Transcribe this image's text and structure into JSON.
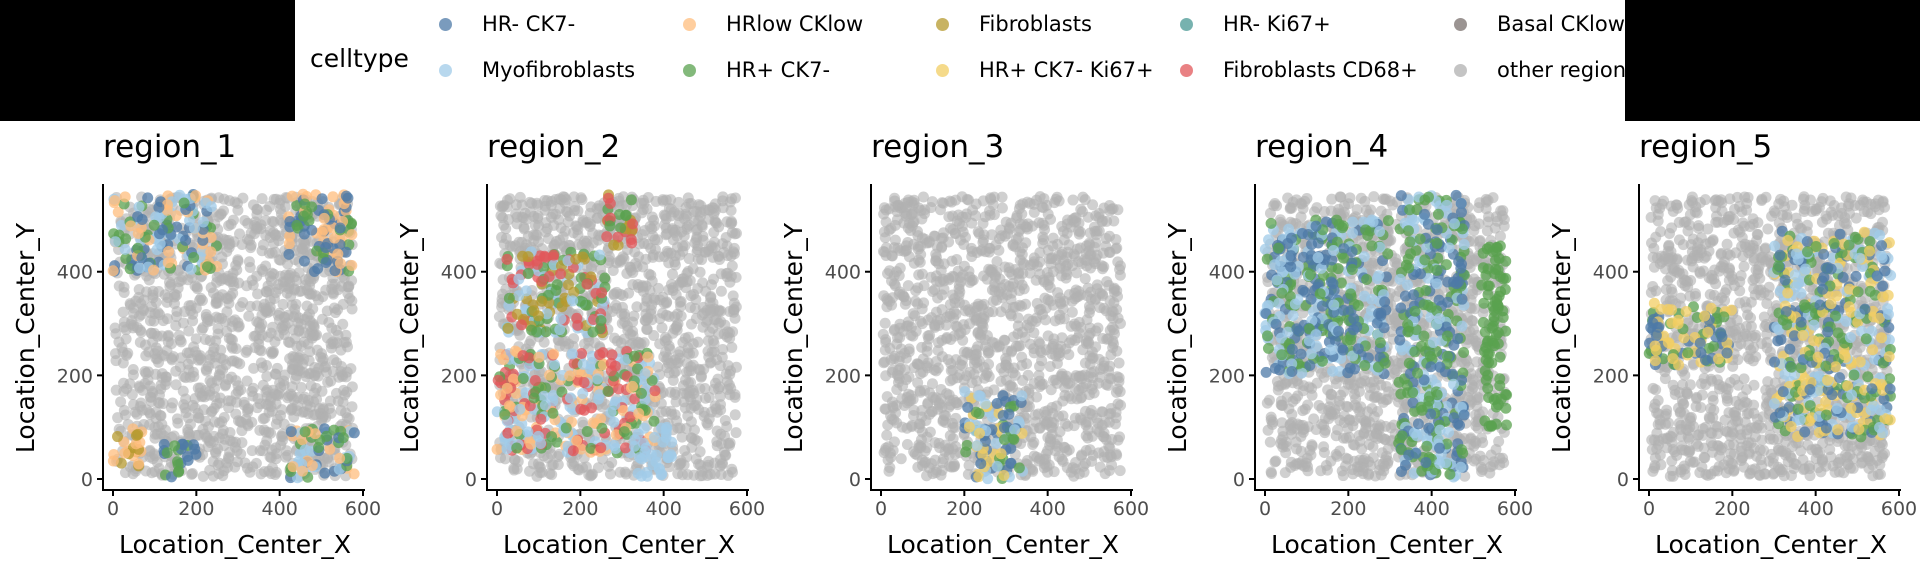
{
  "legend": {
    "title": "celltype",
    "items": [
      {
        "label": "HR- CK7-",
        "color": "#4e79a7"
      },
      {
        "label": "Myofibroblasts",
        "color": "#a0cbe8"
      },
      {
        "label": "HRlow CKlow",
        "color": "#ffbe7d"
      },
      {
        "label": "HR+ CK7-",
        "color": "#59a14f"
      },
      {
        "label": "Fibroblasts",
        "color": "#b6992d"
      },
      {
        "label": "HR+ CK7- Ki67+",
        "color": "#f1ce63"
      },
      {
        "label": "HR- Ki67+",
        "color": "#499894"
      },
      {
        "label": "Fibroblasts CD68+",
        "color": "#e15759"
      },
      {
        "label": "Basal CKlow",
        "color": "#79706e"
      },
      {
        "label": "other regions",
        "color": "#b0b0b0"
      }
    ]
  },
  "chart_data": [
    {
      "type": "scatter",
      "title": "region_1",
      "xlabel": "Location_Center_X",
      "ylabel": "Location_Center_Y",
      "xlim": [
        0,
        600
      ],
      "ylim": [
        0,
        550
      ],
      "xticks": [
        0,
        200,
        400,
        600
      ],
      "yticks": [
        0,
        200,
        400
      ],
      "highlight_regions": [
        {
          "celltypes": [
            "HRlow CKlow",
            "HR+ CK7-",
            "HR- CK7-",
            "Myofibroblasts"
          ],
          "x": [
            0,
            250
          ],
          "y": [
            400,
            550
          ]
        },
        {
          "celltypes": [
            "HR+ CK7-",
            "HR- CK7-",
            "HRlow CKlow"
          ],
          "x": [
            420,
            580
          ],
          "y": [
            400,
            550
          ]
        },
        {
          "celltypes": [
            "HRlow CKlow",
            "Fibroblasts"
          ],
          "x": [
            0,
            70
          ],
          "y": [
            20,
            100
          ]
        },
        {
          "celltypes": [
            "HR+ CK7-",
            "HR- CK7-"
          ],
          "x": [
            120,
            200
          ],
          "y": [
            0,
            70
          ]
        },
        {
          "celltypes": [
            "Myofibroblasts",
            "HR+ CK7-",
            "HR- CK7-",
            "HRlow CKlow"
          ],
          "x": [
            420,
            580
          ],
          "y": [
            0,
            100
          ]
        }
      ],
      "background": "other regions"
    },
    {
      "type": "scatter",
      "title": "region_2",
      "xlabel": "Location_Center_X",
      "ylabel": "Location_Center_Y",
      "xlim": [
        0,
        600
      ],
      "ylim": [
        0,
        550
      ],
      "xticks": [
        0,
        200,
        400,
        600
      ],
      "yticks": [
        0,
        200,
        400
      ],
      "highlight_regions": [
        {
          "celltypes": [
            "HR+ CK7-",
            "Fibroblasts CD68+",
            "Fibroblasts"
          ],
          "x": [
            260,
            330
          ],
          "y": [
            450,
            550
          ]
        },
        {
          "celltypes": [
            "Myofibroblasts",
            "HR+ CK7-",
            "Fibroblasts CD68+",
            "Fibroblasts"
          ],
          "x": [
            20,
            260
          ],
          "y": [
            280,
            440
          ]
        },
        {
          "celltypes": [
            "Myofibroblasts",
            "HR+ CK7-",
            "Fibroblasts CD68+",
            "HRlow CKlow"
          ],
          "x": [
            0,
            380
          ],
          "y": [
            50,
            250
          ]
        },
        {
          "celltypes": [
            "Myofibroblasts"
          ],
          "x": [
            330,
            420
          ],
          "y": [
            0,
            100
          ]
        }
      ],
      "background": "other regions"
    },
    {
      "type": "scatter",
      "title": "region_3",
      "xlabel": "Location_Center_X",
      "ylabel": "Location_Center_Y",
      "xlim": [
        0,
        600
      ],
      "ylim": [
        0,
        550
      ],
      "xticks": [
        0,
        200,
        400,
        600
      ],
      "yticks": [
        0,
        200,
        400
      ],
      "highlight_regions": [
        {
          "celltypes": [
            "HR+ CK7-",
            "Myofibroblasts",
            "HR- CK7-",
            "HR+ CK7- Ki67+"
          ],
          "x": [
            200,
            340
          ],
          "y": [
            0,
            170
          ]
        }
      ],
      "background": "other regions"
    },
    {
      "type": "scatter",
      "title": "region_4",
      "xlabel": "Location_Center_X",
      "ylabel": "Location_Center_Y",
      "xlim": [
        0,
        600
      ],
      "ylim": [
        0,
        550
      ],
      "xticks": [
        0,
        200,
        400,
        600
      ],
      "yticks": [
        0,
        200,
        400
      ],
      "highlight_regions": [
        {
          "celltypes": [
            "HR+ CK7-",
            "Myofibroblasts",
            "HR- CK7-"
          ],
          "x": [
            0,
            300
          ],
          "y": [
            200,
            500
          ]
        },
        {
          "celltypes": [
            "HR+ CK7-",
            "Myofibroblasts",
            "HR- CK7-"
          ],
          "x": [
            320,
            480
          ],
          "y": [
            0,
            550
          ]
        },
        {
          "celltypes": [
            "HR+ CK7-"
          ],
          "x": [
            520,
            580
          ],
          "y": [
            100,
            450
          ]
        }
      ],
      "background": "other regions"
    },
    {
      "type": "scatter",
      "title": "region_5",
      "xlabel": "Location_Center_X",
      "ylabel": "Location_Center_Y",
      "xlim": [
        0,
        600
      ],
      "ylim": [
        0,
        550
      ],
      "xticks": [
        0,
        200,
        400,
        600
      ],
      "yticks": [
        0,
        200,
        400
      ],
      "highlight_regions": [
        {
          "celltypes": [
            "HR+ CK7-",
            "HR+ CK7- Ki67+",
            "HR- CK7-"
          ],
          "x": [
            0,
            200
          ],
          "y": [
            220,
            340
          ]
        },
        {
          "celltypes": [
            "HR+ CK7-",
            "HR+ CK7- Ki67+",
            "HR- CK7-",
            "Myofibroblasts"
          ],
          "x": [
            300,
            580
          ],
          "y": [
            80,
            480
          ]
        }
      ],
      "background": "other regions"
    }
  ],
  "panels": [
    {
      "title": "region_1",
      "xlabel": "Location_Center_X",
      "ylabel": "Location_Center_Y"
    },
    {
      "title": "region_2",
      "xlabel": "Location_Center_X",
      "ylabel": "Location_Center_Y"
    },
    {
      "title": "region_3",
      "xlabel": "Location_Center_X",
      "ylabel": "Location_Center_Y"
    },
    {
      "title": "region_4",
      "xlabel": "Location_Center_X",
      "ylabel": "Location_Center_Y"
    },
    {
      "title": "region_5",
      "xlabel": "Location_Center_X",
      "ylabel": "Location_Center_Y"
    }
  ],
  "axis_ticks": {
    "x": [
      "0",
      "200",
      "400",
      "600"
    ],
    "y": [
      "0",
      "200",
      "400"
    ]
  }
}
